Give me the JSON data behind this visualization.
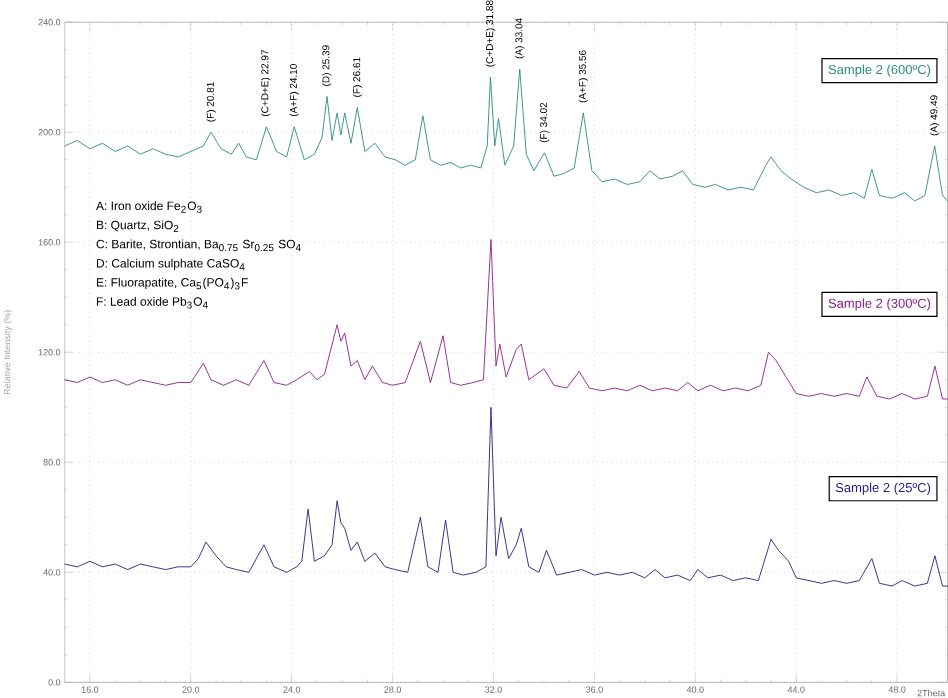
{
  "chart_data": {
    "type": "line",
    "xlabel": "2Theta",
    "ylabel": "Relative Intensity (%)",
    "grid": true,
    "xlim": [
      15,
      50
    ],
    "ylim": [
      0,
      240
    ],
    "xticks": [
      {
        "value": 16,
        "label": "16.0"
      },
      {
        "value": 20,
        "label": "20.0"
      },
      {
        "value": 24,
        "label": "24.0"
      },
      {
        "value": 28,
        "label": "28.0"
      },
      {
        "value": 32,
        "label": "32.0"
      },
      {
        "value": 36,
        "label": "36.0"
      },
      {
        "value": 40,
        "label": "40.0"
      },
      {
        "value": 44,
        "label": "44.0"
      },
      {
        "value": 48,
        "label": "48.0"
      }
    ],
    "yticks": [
      {
        "value": 0,
        "label": "0.0"
      },
      {
        "value": 40,
        "label": "40.0"
      },
      {
        "value": 80,
        "label": "80.0"
      },
      {
        "value": 120,
        "label": "120.0"
      },
      {
        "value": 160,
        "label": "160.0"
      },
      {
        "value": 200,
        "label": "200.0"
      },
      {
        "value": 240,
        "label": "240.0"
      }
    ],
    "series": [
      {
        "name": "Sample 2  (600ºC)",
        "color": "#2b8c7e",
        "x": [
          15.0,
          15.5,
          16.0,
          16.5,
          17.0,
          17.5,
          18.0,
          18.5,
          19.0,
          19.5,
          20.0,
          20.5,
          20.8,
          21.2,
          21.6,
          21.9,
          22.2,
          22.6,
          23.0,
          23.4,
          23.8,
          24.1,
          24.5,
          24.9,
          25.2,
          25.4,
          25.6,
          25.8,
          25.95,
          26.1,
          26.35,
          26.6,
          26.9,
          27.3,
          27.7,
          28.1,
          28.5,
          28.9,
          29.2,
          29.5,
          29.9,
          30.3,
          30.7,
          31.1,
          31.5,
          31.75,
          31.88,
          32.05,
          32.2,
          32.45,
          32.8,
          33.04,
          33.3,
          33.6,
          34.02,
          34.4,
          34.8,
          35.2,
          35.56,
          35.9,
          36.3,
          36.8,
          37.3,
          37.8,
          38.2,
          38.6,
          39.1,
          39.5,
          39.9,
          40.4,
          40.8,
          41.3,
          41.8,
          42.3,
          42.8,
          43.0,
          43.4,
          43.8,
          44.3,
          44.8,
          45.3,
          45.8,
          46.3,
          46.7,
          47.0,
          47.3,
          47.8,
          48.3,
          48.7,
          49.1,
          49.49,
          49.8,
          50.0
        ],
        "values": [
          195,
          197,
          194,
          196,
          193,
          195,
          192,
          194,
          192,
          191,
          193,
          195,
          200,
          194,
          192,
          196,
          191,
          190,
          202,
          193,
          191,
          202,
          190,
          192,
          198,
          213,
          197,
          207,
          199,
          207,
          196,
          209,
          193,
          196,
          191,
          190,
          188,
          190,
          206,
          190,
          188,
          189,
          187,
          188,
          187,
          195,
          220,
          195,
          205,
          188,
          195,
          223,
          192,
          186,
          192.5,
          184,
          185,
          187,
          207,
          186,
          182,
          183,
          181,
          182,
          186,
          183,
          184,
          186,
          181,
          180,
          181,
          179,
          180,
          179,
          188,
          191,
          186,
          183,
          180,
          178,
          179,
          177,
          178,
          176,
          186.5,
          177,
          176,
          178,
          175,
          177,
          195,
          177,
          175
        ]
      },
      {
        "name": "Sample 2  (300ºC)",
        "color": "#8a1e8e",
        "x": [
          15.0,
          15.5,
          16.0,
          16.5,
          17.0,
          17.5,
          18.0,
          18.5,
          19.0,
          19.5,
          20.0,
          20.5,
          20.8,
          21.3,
          21.8,
          22.3,
          22.9,
          23.3,
          23.8,
          24.2,
          24.7,
          25.0,
          25.3,
          25.8,
          25.95,
          26.1,
          26.35,
          26.6,
          26.9,
          27.2,
          27.6,
          28.0,
          28.5,
          29.1,
          29.5,
          30.0,
          30.3,
          30.7,
          31.2,
          31.6,
          31.9,
          32.1,
          32.25,
          32.5,
          32.9,
          33.1,
          33.4,
          34.0,
          34.4,
          34.9,
          35.4,
          35.8,
          36.3,
          36.8,
          37.3,
          37.8,
          38.3,
          38.8,
          39.3,
          39.7,
          40.1,
          40.6,
          41.1,
          41.6,
          42.1,
          42.6,
          42.9,
          43.2,
          43.6,
          44.0,
          44.5,
          45.0,
          45.5,
          46.0,
          46.5,
          46.8,
          47.2,
          47.7,
          48.2,
          48.7,
          49.2,
          49.5,
          49.8,
          50.0
        ],
        "values": [
          110,
          109,
          111,
          109,
          110,
          108,
          110,
          109,
          108,
          109,
          109,
          116,
          110,
          108,
          110,
          108,
          117,
          109,
          108,
          110,
          113,
          110,
          112,
          130,
          124,
          127,
          115,
          117,
          110,
          115,
          109,
          108,
          109,
          124,
          109,
          126,
          109,
          108,
          109,
          110,
          161,
          115,
          123,
          111,
          121,
          123,
          110,
          114,
          108,
          107,
          113,
          107,
          106,
          107,
          106,
          108,
          106,
          107,
          106,
          109,
          106,
          108,
          106,
          107,
          106,
          108,
          120,
          117,
          111,
          105,
          104,
          105,
          104,
          105,
          104,
          111,
          104,
          103,
          105,
          103,
          104,
          115,
          103,
          103
        ]
      },
      {
        "name": "Sample 2  (25ºC)",
        "color": "#2a1f7e",
        "x": [
          15.0,
          15.5,
          16.0,
          16.5,
          17.0,
          17.5,
          18.0,
          18.5,
          19.0,
          19.5,
          20.0,
          20.3,
          20.6,
          21.0,
          21.4,
          21.8,
          22.3,
          22.9,
          23.3,
          23.8,
          24.2,
          24.4,
          24.65,
          24.9,
          25.3,
          25.6,
          25.8,
          25.95,
          26.1,
          26.35,
          26.6,
          26.9,
          27.3,
          27.7,
          28.1,
          28.6,
          29.1,
          29.4,
          29.8,
          30.1,
          30.4,
          30.8,
          31.3,
          31.7,
          31.9,
          32.1,
          32.3,
          32.6,
          32.9,
          33.1,
          33.4,
          33.8,
          34.1,
          34.5,
          35.0,
          35.5,
          36.0,
          36.5,
          37.0,
          37.5,
          38.0,
          38.4,
          38.8,
          39.3,
          39.8,
          40.1,
          40.5,
          41.0,
          41.5,
          42.0,
          42.5,
          43.0,
          43.3,
          43.7,
          44.0,
          44.5,
          45.0,
          45.5,
          46.0,
          46.5,
          47.0,
          47.3,
          47.8,
          48.2,
          48.7,
          49.2,
          49.5,
          49.8,
          50.0
        ],
        "values": [
          43,
          42,
          44,
          42,
          43,
          41,
          43,
          42,
          41,
          42,
          42,
          45,
          51,
          46,
          42,
          41,
          40,
          50,
          42,
          40,
          42,
          44,
          63,
          44,
          46,
          50,
          66,
          58,
          56,
          48,
          51,
          44,
          47,
          42,
          41,
          40,
          60,
          42,
          40,
          59,
          40,
          39,
          40,
          42,
          100,
          46,
          60,
          45,
          50,
          56,
          42,
          40,
          48,
          39,
          40,
          41,
          39,
          40,
          39,
          40,
          38,
          41,
          38,
          39,
          37,
          41,
          38,
          39,
          37,
          38,
          37,
          52,
          48,
          44,
          38,
          37,
          36,
          37,
          36,
          37,
          45,
          36,
          35,
          37,
          35,
          36,
          46,
          35,
          35
        ]
      }
    ],
    "annotations": [
      {
        "text": "(F) 20.81",
        "x": 20.81,
        "y": 200
      },
      {
        "text": "(C+D+E) 22.97",
        "x": 22.97,
        "y": 202
      },
      {
        "text": "(A+F) 24.10",
        "x": 24.1,
        "y": 202
      },
      {
        "text": "(D) 25.39",
        "x": 25.39,
        "y": 213
      },
      {
        "text": "(F) 26.61",
        "x": 26.61,
        "y": 209
      },
      {
        "text": "(C+D+E) 31.88",
        "x": 31.88,
        "y": 220
      },
      {
        "text": "(A) 33.04",
        "x": 33.04,
        "y": 223
      },
      {
        "text": "(F) 34.02",
        "x": 34.02,
        "y": 192.5
      },
      {
        "text": "(A+F) 35.56",
        "x": 35.56,
        "y": 207
      },
      {
        "text": "(A) 49.49",
        "x": 49.49,
        "y": 195
      },
      "A: Iron oxide Fe$_{2}$O$_{3}$",
      "B: Quartz, SiO$_{2}$",
      "C: Barite, Strontian, Ba$_{0.75}$ Sr$_{0.25}$ SO$_{4}$",
      "D: Calcium sulphate CaSO$_{4}$",
      "E: Fluorapatite, Ca$_{5}$(PO$_{4}$)$_{3}$F",
      "F: Lead oxide Pb$_{3}$O$_{4}$"
    ]
  }
}
